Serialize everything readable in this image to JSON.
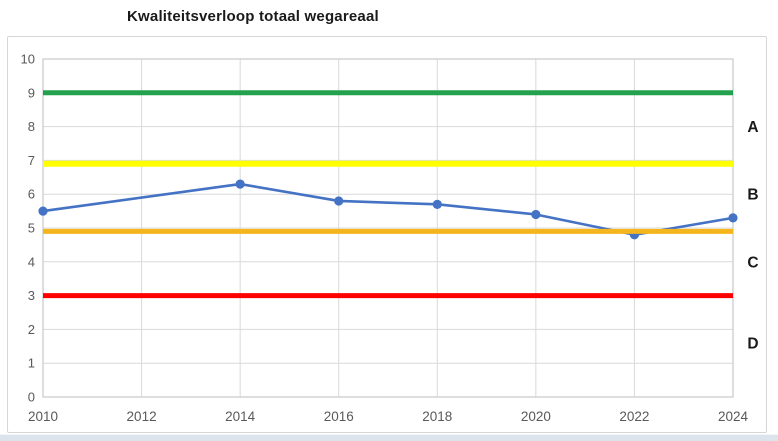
{
  "chart_data": {
    "type": "line",
    "title": "Kwaliteitsverloop totaal wegareaal",
    "x": [
      2010,
      2014,
      2016,
      2018,
      2020,
      2022,
      2024
    ],
    "series": [
      {
        "color": "#4472C4",
        "values": [
          5.5,
          6.3,
          5.8,
          5.7,
          5.4,
          4.8,
          5.3
        ]
      }
    ],
    "thresholds": [
      {
        "name": "green-line",
        "value": 9.0,
        "color": "#22A14E"
      },
      {
        "name": "yellow-line",
        "value": 6.9,
        "color": "#FFFF00"
      },
      {
        "name": "orange-line",
        "value": 4.9,
        "color": "#F5B51D"
      },
      {
        "name": "red-line",
        "value": 3.0,
        "color": "#FF0000"
      }
    ],
    "bands": [
      {
        "label": "A",
        "y": 8.0
      },
      {
        "label": "B",
        "y": 6.0
      },
      {
        "label": "C",
        "y": 4.0
      },
      {
        "label": "D",
        "y": 1.6
      }
    ],
    "xticks": [
      2010,
      2012,
      2014,
      2016,
      2018,
      2020,
      2022,
      2024
    ],
    "yticks": [
      0,
      1,
      2,
      3,
      4,
      5,
      6,
      7,
      8,
      9,
      10
    ],
    "xlim": [
      2010,
      2024
    ],
    "ylim": [
      0,
      10
    ],
    "grid": true,
    "legend": false
  },
  "style": {
    "gridline_color": "#D9D9D9",
    "plot_border_color": "#C9C9C9",
    "axis_label_color": "#595959",
    "band_label_color": "#1a1a1a",
    "frame_border_color": "#D6D6D6",
    "bottom_strip_color": "#DCE3EB",
    "background": "#FFFFFF"
  }
}
